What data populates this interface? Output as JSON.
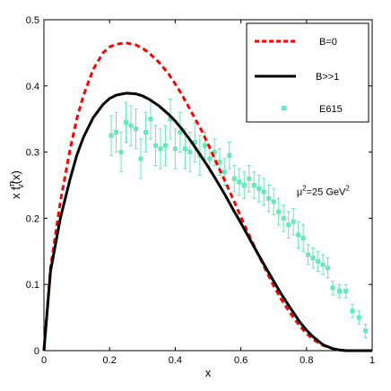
{
  "chart_data": {
    "type": "line",
    "xlabel": "x",
    "ylabel": "x f",
    "ylabel_sup": "π",
    "ylabel_sub": "v",
    "ylabel_tail": "(x)",
    "xlim": [
      0,
      1
    ],
    "ylim": [
      0,
      0.5
    ],
    "xticks": [
      "0",
      "0.2",
      "0.4",
      "0.6",
      "0.8",
      "1"
    ],
    "yticks": [
      "0",
      "0.1",
      "0.2",
      "0.3",
      "0.4",
      "0.5"
    ],
    "grid": false,
    "legend_position": "top-right",
    "annotation": {
      "mu": "μ",
      "sup1": "2",
      "mid": "=25 GeV",
      "sup2": "2",
      "x": 0.77,
      "y": 0.235
    },
    "series": [
      {
        "name": "B=0",
        "style": "dashed",
        "color": "#ff0000",
        "x": [
          0,
          0.02,
          0.05,
          0.08,
          0.1,
          0.12,
          0.15,
          0.18,
          0.2,
          0.22,
          0.25,
          0.28,
          0.3,
          0.32,
          0.35,
          0.38,
          0.4,
          0.42,
          0.45,
          0.48,
          0.5,
          0.52,
          0.55,
          0.58,
          0.6,
          0.62,
          0.65,
          0.68,
          0.7,
          0.72,
          0.75,
          0.78,
          0.8,
          0.82,
          0.85,
          0.88,
          0.9,
          0.92,
          0.95,
          1.0
        ],
        "y": [
          0,
          0.125,
          0.225,
          0.305,
          0.35,
          0.385,
          0.425,
          0.45,
          0.459,
          0.463,
          0.465,
          0.462,
          0.457,
          0.45,
          0.436,
          0.418,
          0.403,
          0.387,
          0.36,
          0.333,
          0.312,
          0.29,
          0.258,
          0.225,
          0.202,
          0.18,
          0.148,
          0.118,
          0.098,
          0.08,
          0.057,
          0.037,
          0.026,
          0.017,
          0.008,
          0.003,
          0.001,
          0.0,
          0.0,
          0.0
        ]
      },
      {
        "name": "B>>1",
        "style": "solid",
        "color": "#000000",
        "x": [
          0,
          0.02,
          0.05,
          0.08,
          0.1,
          0.12,
          0.15,
          0.18,
          0.2,
          0.22,
          0.25,
          0.28,
          0.3,
          0.32,
          0.35,
          0.38,
          0.4,
          0.42,
          0.45,
          0.48,
          0.5,
          0.52,
          0.55,
          0.58,
          0.6,
          0.62,
          0.65,
          0.68,
          0.7,
          0.72,
          0.75,
          0.78,
          0.8,
          0.82,
          0.85,
          0.88,
          0.9,
          0.92,
          0.95,
          1.0
        ],
        "y": [
          0,
          0.12,
          0.2,
          0.26,
          0.295,
          0.322,
          0.352,
          0.372,
          0.381,
          0.386,
          0.389,
          0.388,
          0.385,
          0.38,
          0.37,
          0.357,
          0.347,
          0.335,
          0.315,
          0.293,
          0.278,
          0.262,
          0.237,
          0.21,
          0.193,
          0.175,
          0.148,
          0.122,
          0.105,
          0.088,
          0.065,
          0.043,
          0.031,
          0.021,
          0.009,
          0.003,
          0.001,
          0.0,
          0.0,
          0.0
        ]
      },
      {
        "name": "E615",
        "style": "markers",
        "color": "#66e8b8",
        "x": [
          0.205,
          0.22,
          0.235,
          0.25,
          0.265,
          0.28,
          0.295,
          0.31,
          0.325,
          0.34,
          0.355,
          0.37,
          0.385,
          0.4,
          0.415,
          0.43,
          0.445,
          0.46,
          0.475,
          0.49,
          0.505,
          0.52,
          0.535,
          0.55,
          0.565,
          0.58,
          0.595,
          0.61,
          0.625,
          0.64,
          0.655,
          0.67,
          0.685,
          0.7,
          0.715,
          0.73,
          0.745,
          0.76,
          0.775,
          0.79,
          0.805,
          0.82,
          0.835,
          0.85,
          0.865,
          0.88,
          0.9,
          0.92,
          0.94,
          0.96,
          0.98
        ],
        "y": [
          0.325,
          0.33,
          0.3,
          0.345,
          0.34,
          0.335,
          0.29,
          0.33,
          0.35,
          0.31,
          0.305,
          0.31,
          0.35,
          0.305,
          0.33,
          0.305,
          0.3,
          0.315,
          0.295,
          0.31,
          0.29,
          0.3,
          0.285,
          0.27,
          0.295,
          0.26,
          0.255,
          0.25,
          0.26,
          0.25,
          0.245,
          0.24,
          0.23,
          0.225,
          0.21,
          0.2,
          0.19,
          0.195,
          0.175,
          0.17,
          0.145,
          0.14,
          0.135,
          0.13,
          0.125,
          0.095,
          0.09,
          0.09,
          0.06,
          0.05,
          0.03
        ],
        "err": [
          0.03,
          0.03,
          0.03,
          0.03,
          0.03,
          0.03,
          0.03,
          0.03,
          0.03,
          0.03,
          0.03,
          0.03,
          0.03,
          0.03,
          0.03,
          0.03,
          0.03,
          0.03,
          0.03,
          0.02,
          0.02,
          0.02,
          0.02,
          0.02,
          0.02,
          0.02,
          0.02,
          0.02,
          0.02,
          0.02,
          0.02,
          0.02,
          0.02,
          0.02,
          0.02,
          0.02,
          0.02,
          0.02,
          0.02,
          0.02,
          0.015,
          0.015,
          0.015,
          0.015,
          0.015,
          0.01,
          0.01,
          0.01,
          0.01,
          0.01,
          0.01
        ]
      }
    ]
  }
}
